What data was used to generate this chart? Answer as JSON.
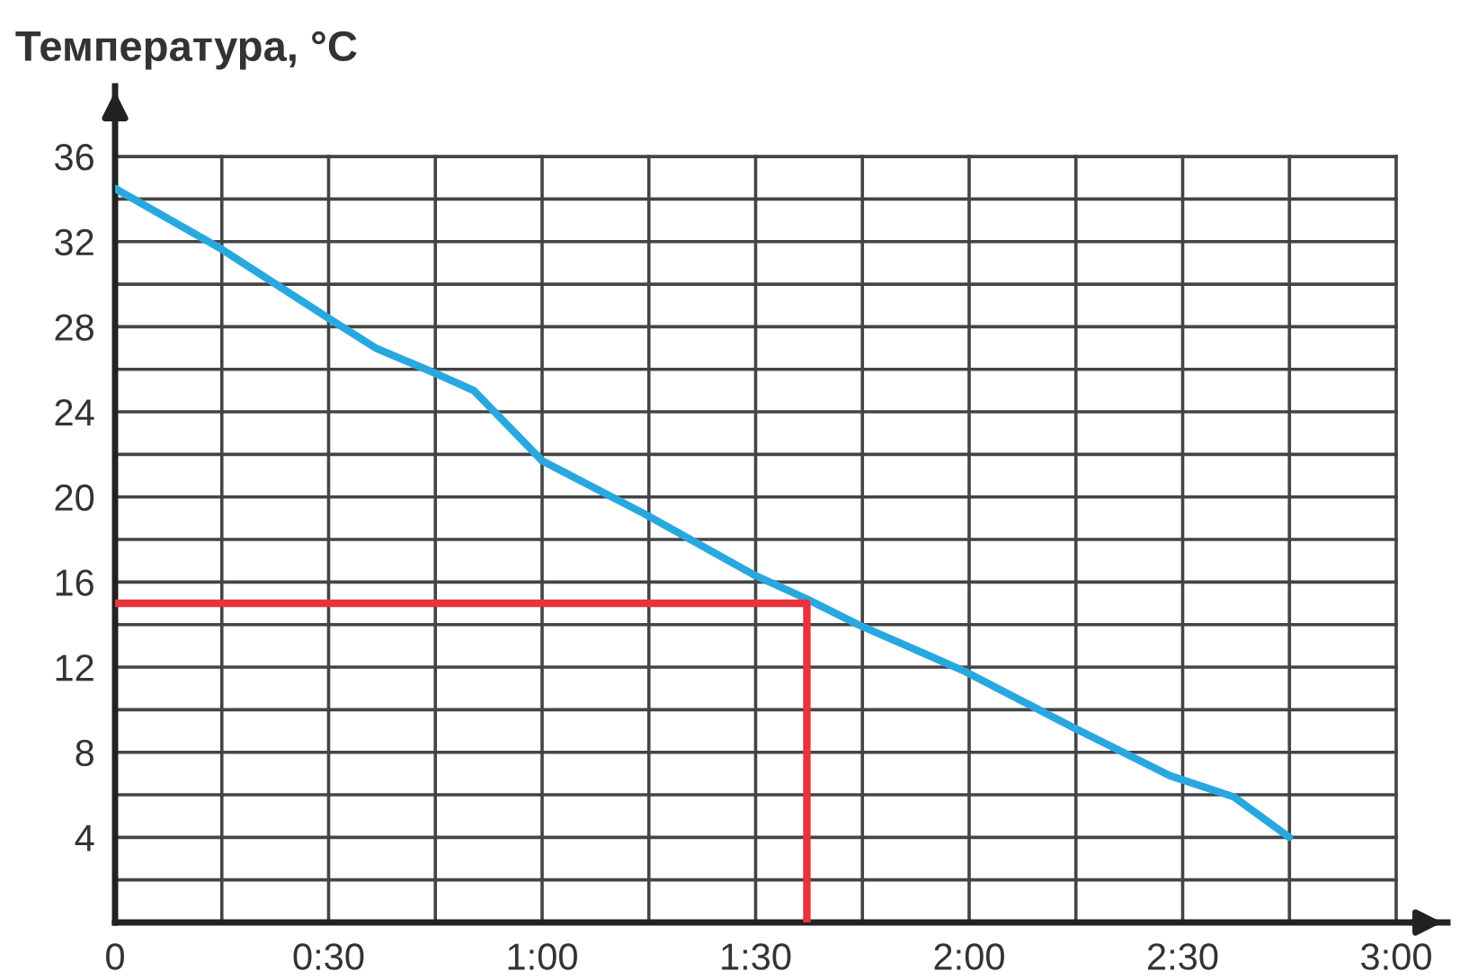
{
  "chart_data": {
    "type": "line",
    "ylabel": "Температура, °C",
    "xlim": [
      0,
      3.12
    ],
    "ylim": [
      0,
      39.3
    ],
    "xticks": [
      {
        "value": 0,
        "label": "0"
      },
      {
        "value": 0.25,
        "label": null
      },
      {
        "value": 0.5,
        "label": "0:30"
      },
      {
        "value": 0.75,
        "label": null
      },
      {
        "value": 1,
        "label": "1:00"
      },
      {
        "value": 1.25,
        "label": null
      },
      {
        "value": 1.5,
        "label": "1:30"
      },
      {
        "value": 1.75,
        "label": null
      },
      {
        "value": 2,
        "label": "2:00"
      },
      {
        "value": 2.25,
        "label": null
      },
      {
        "value": 2.5,
        "label": "2:30"
      },
      {
        "value": 2.75,
        "label": null
      },
      {
        "value": 3,
        "label": "3:00"
      }
    ],
    "yticks": [
      {
        "value": 2,
        "label": null
      },
      4,
      {
        "value": 6,
        "label": null
      },
      8,
      {
        "value": 10,
        "label": null
      },
      12,
      {
        "value": 14,
        "label": null
      },
      16,
      {
        "value": 18,
        "label": null
      },
      20,
      {
        "value": 22,
        "label": null
      },
      24,
      {
        "value": 26,
        "label": null
      },
      28,
      {
        "value": 30,
        "label": null
      },
      32,
      {
        "value": 34,
        "label": null
      },
      36
    ],
    "grid": true,
    "series": [
      {
        "color": "#29a8e0",
        "x": [
          0,
          0.245,
          0.5,
          0.61,
          0.74,
          0.84,
          1.0,
          1.24,
          1.5,
          1.62,
          1.74,
          1.99,
          2.24,
          2.47,
          2.62,
          2.75
        ],
        "values": [
          34.5,
          31.7,
          28.4,
          27.0,
          25.9,
          25.0,
          21.7,
          19.2,
          16.3,
          15.2,
          14.0,
          11.8,
          9.2,
          6.9,
          5.9,
          4.0
        ]
      },
      {
        "color": "#e8323c",
        "x": [
          0,
          1.62,
          1.62
        ],
        "values": [
          15,
          15,
          0
        ]
      }
    ]
  }
}
